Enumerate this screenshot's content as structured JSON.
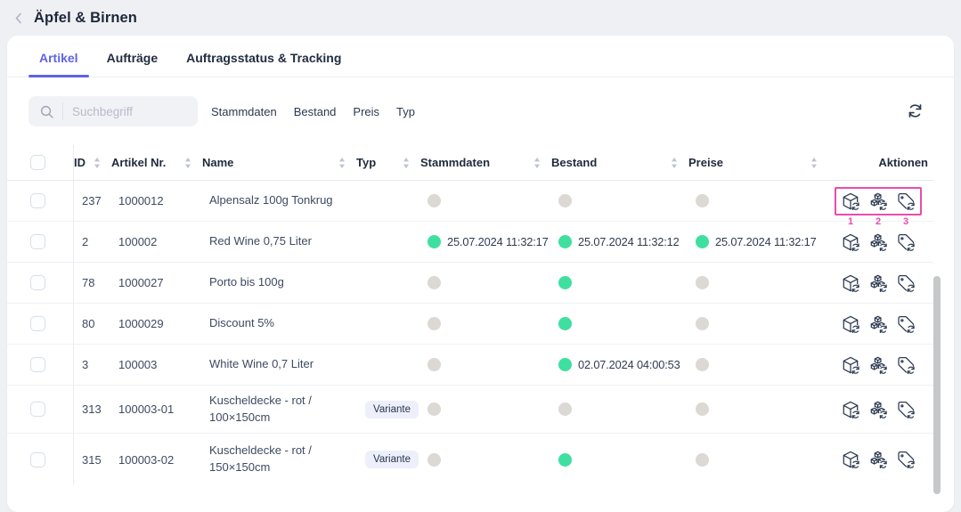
{
  "header": {
    "title": "Äpfel & Birnen"
  },
  "tabs": [
    {
      "label": "Artikel",
      "active": true
    },
    {
      "label": "Aufträge",
      "active": false
    },
    {
      "label": "Auftragsstatus & Tracking",
      "active": false
    }
  ],
  "toolbar": {
    "search_placeholder": "Suchbegriff",
    "filters": [
      "Stammdaten",
      "Bestand",
      "Preis",
      "Typ"
    ]
  },
  "table": {
    "headers": [
      {
        "key": "id",
        "label": "ID",
        "sortable": true
      },
      {
        "key": "artikel_nr",
        "label": "Artikel Nr.",
        "sortable": true
      },
      {
        "key": "name",
        "label": "Name",
        "sortable": true
      },
      {
        "key": "typ",
        "label": "Typ",
        "sortable": true
      },
      {
        "key": "stammdaten",
        "label": "Stammdaten",
        "sortable": true
      },
      {
        "key": "bestand",
        "label": "Bestand",
        "sortable": true
      },
      {
        "key": "preise",
        "label": "Preise",
        "sortable": true
      },
      {
        "key": "aktionen",
        "label": "Aktionen",
        "sortable": false
      }
    ],
    "actions": [
      {
        "name": "sync-stammdaten-button",
        "icon": "cube-sync-icon",
        "annotation": "1"
      },
      {
        "name": "sync-bestand-button",
        "icon": "cubes-sync-icon",
        "annotation": "2"
      },
      {
        "name": "sync-preise-button",
        "icon": "tag-sync-icon",
        "annotation": "3"
      }
    ],
    "rows": [
      {
        "id": "237",
        "artikel_nr": "1000012",
        "name": "Alpensalz 100g Tonkrug",
        "typ": null,
        "stammdaten": {
          "status": "not_synced",
          "timestamp": null
        },
        "bestand": {
          "status": "not_synced",
          "timestamp": null
        },
        "preise": {
          "status": "not_synced",
          "timestamp": null
        },
        "annotated": true
      },
      {
        "id": "2",
        "artikel_nr": "100002",
        "name": "Red Wine 0,75 Liter",
        "typ": null,
        "stammdaten": {
          "status": "synced",
          "timestamp": "25.07.2024 11:32:17"
        },
        "bestand": {
          "status": "synced",
          "timestamp": "25.07.2024 11:32:12"
        },
        "preise": {
          "status": "synced",
          "timestamp": "25.07.2024 11:32:17"
        },
        "annotated": false
      },
      {
        "id": "78",
        "artikel_nr": "1000027",
        "name": "Porto bis 100g",
        "typ": null,
        "stammdaten": {
          "status": "not_synced",
          "timestamp": null
        },
        "bestand": {
          "status": "synced",
          "timestamp": null
        },
        "preise": {
          "status": "not_synced",
          "timestamp": null
        },
        "annotated": false
      },
      {
        "id": "80",
        "artikel_nr": "1000029",
        "name": "Discount 5%",
        "typ": null,
        "stammdaten": {
          "status": "not_synced",
          "timestamp": null
        },
        "bestand": {
          "status": "synced",
          "timestamp": null
        },
        "preise": {
          "status": "not_synced",
          "timestamp": null
        },
        "annotated": false
      },
      {
        "id": "3",
        "artikel_nr": "100003",
        "name": "White Wine 0,7 Liter",
        "typ": null,
        "stammdaten": {
          "status": "not_synced",
          "timestamp": null
        },
        "bestand": {
          "status": "synced",
          "timestamp": "02.07.2024 04:00:53"
        },
        "preise": {
          "status": "not_synced",
          "timestamp": null
        },
        "annotated": false
      },
      {
        "id": "313",
        "artikel_nr": "100003-01",
        "name": "Kuscheldecke - rot / 100×150cm",
        "typ": "Variante",
        "stammdaten": {
          "status": "not_synced",
          "timestamp": null
        },
        "bestand": {
          "status": "not_synced",
          "timestamp": null
        },
        "preise": {
          "status": "not_synced",
          "timestamp": null
        },
        "annotated": false
      },
      {
        "id": "315",
        "artikel_nr": "100003-02",
        "name": "Kuscheldecke - rot / 150×150cm",
        "typ": "Variante",
        "stammdaten": {
          "status": "not_synced",
          "timestamp": null
        },
        "bestand": {
          "status": "synced",
          "timestamp": null
        },
        "preise": {
          "status": "not_synced",
          "timestamp": null
        },
        "annotated": false
      }
    ]
  },
  "colors": {
    "accent": "#5f62e6",
    "status_synced": "#3fdfa0",
    "status_not_synced": "#dcd8d4",
    "annotation_pink": "#ea4cad"
  }
}
